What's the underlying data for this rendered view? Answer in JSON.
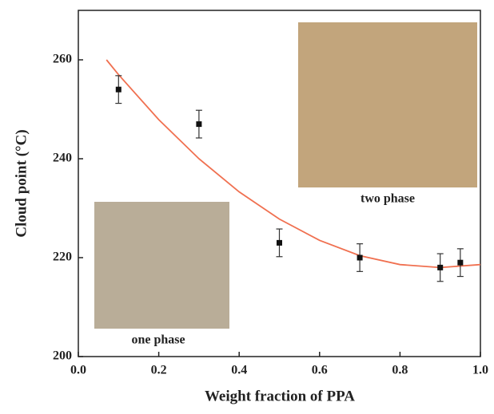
{
  "chart_data": {
    "type": "scatter",
    "xlabel": "Weight fraction of PPA",
    "ylabel": "Cloud point (°C)",
    "x": [
      0.1,
      0.3,
      0.5,
      0.7,
      0.9,
      0.95
    ],
    "values": [
      254,
      247,
      223,
      220,
      218,
      219
    ],
    "errors": [
      2.8,
      2.8,
      2.8,
      2.8,
      2.8,
      2.8
    ],
    "color": "#111111",
    "fit_x": [
      0.07,
      0.1,
      0.2,
      0.3,
      0.4,
      0.5,
      0.6,
      0.7,
      0.8,
      0.9,
      1.0
    ],
    "fit_values": [
      260,
      257,
      247.9,
      240,
      233.3,
      227.8,
      223.5,
      220.4,
      218.6,
      218,
      218.6
    ],
    "fit_color": "#f07050",
    "xlim": [
      0,
      1
    ],
    "ylim": [
      200,
      270
    ],
    "xticks": [
      {
        "value": 0,
        "label": "0.0"
      },
      0.2,
      0.4,
      0.6,
      0.8,
      {
        "value": 1,
        "label": "1.0"
      }
    ],
    "yticks": [
      200,
      220,
      240,
      260
    ],
    "annotations": [
      "two phase",
      "one phase"
    ]
  }
}
